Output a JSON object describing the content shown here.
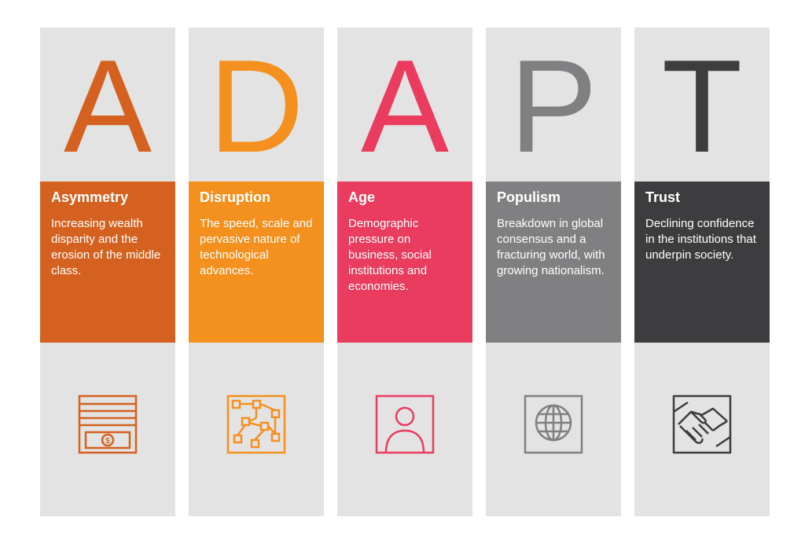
{
  "columns": [
    {
      "letter": "A",
      "title": "Asymmetry",
      "description": "Increasing wealth disparity and the erosion of the middle class.",
      "color": "#d4611f",
      "icon": "money-bill-icon"
    },
    {
      "letter": "D",
      "title": "Disruption",
      "description": "The speed, scale and pervasive nature of technological advances.",
      "color": "#f4901e",
      "icon": "network-flow-icon"
    },
    {
      "letter": "A",
      "title": "Age",
      "description": "Demographic pressure on business, social institutions and economies.",
      "color": "#e93c5f",
      "icon": "person-portrait-icon"
    },
    {
      "letter": "P",
      "title": "Populism",
      "description": "Breakdown in global consensus and a fracturing world, with growing nationalism.",
      "color": "#808083",
      "icon": "globe-icon"
    },
    {
      "letter": "T",
      "title": "Trust",
      "description": "Declining confidence in the institutions that underpin society.",
      "color": "#3d3d3f",
      "icon": "handshake-icon"
    }
  ],
  "colors": {
    "column_background": "#e3e3e3",
    "page_background": "#ffffff"
  }
}
